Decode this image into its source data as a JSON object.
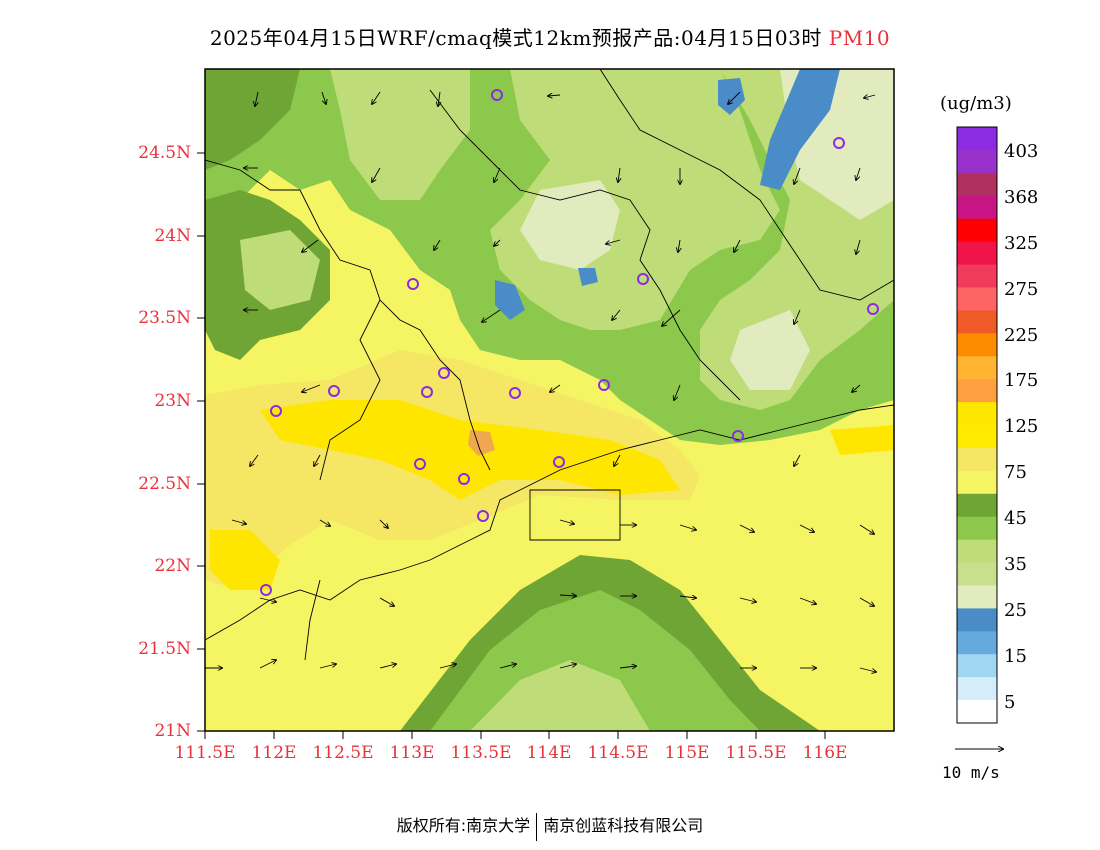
{
  "title": {
    "main": "2025年04月15日WRF/cmaq模式12km预报产品:04月15日03时",
    "variable": "PM10"
  },
  "axes": {
    "lat_labels": [
      "24.5N",
      "24N",
      "23.5N",
      "23N",
      "22.5N",
      "22N",
      "21.5N",
      "21N"
    ],
    "lon_labels": [
      "111.5E",
      "112E",
      "112.5E",
      "113E",
      "113.5E",
      "114E",
      "114.5E",
      "115E",
      "115.5E",
      "116E"
    ]
  },
  "colorbar": {
    "unit": "(ug/m3)",
    "labels": [
      "403",
      "368",
      "325",
      "275",
      "225",
      "175",
      "125",
      "75",
      "45",
      "35",
      "25",
      "15",
      "5"
    ],
    "colors": [
      "#8b2be2",
      "#9932cc",
      "#b03060",
      "#c71585",
      "#ff0000",
      "#f0144b",
      "#f03c5a",
      "#ff6464",
      "#f05a28",
      "#ff8c00",
      "#ffb432",
      "#ffa040",
      "#ffe600",
      "#ffeb00",
      "#f5e664",
      "#f5f564",
      "#6ea534",
      "#8cc84b",
      "#bedc78",
      "#c8e08c",
      "#e1ebbe",
      "#4a8cc8",
      "#64aade",
      "#a0d7f0",
      "#d6ecfa",
      "#ffffff"
    ]
  },
  "wind_legend": {
    "label": "10 m/s"
  },
  "footer": {
    "left": "版权所有:南京大学",
    "right": "南京创蓝科技有限公司"
  },
  "colors": {
    "background": "#f5f564",
    "ocean_green": "#8cc84b",
    "light_green": "#bedc78",
    "pale": "#e1ebbe",
    "dark_green": "#6ea534",
    "blue": "#4a8cc8",
    "orange_hot": "#f0a850",
    "yellow_hot": "#ffe600",
    "label_red": "#e8323c",
    "station_ring": "#8b2be2"
  }
}
